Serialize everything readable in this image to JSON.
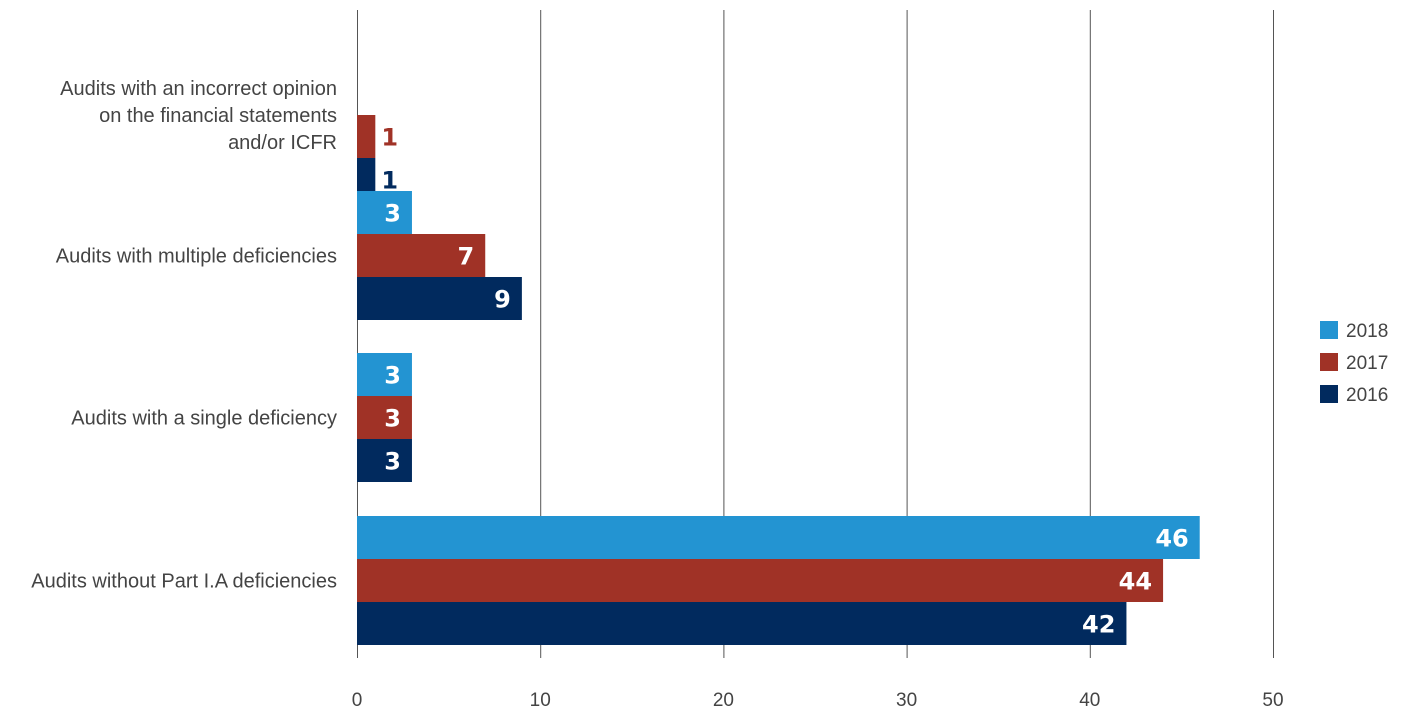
{
  "chart_data": {
    "type": "bar",
    "orientation": "horizontal",
    "categories": [
      [
        "Audits with an incorrect opinion",
        "on the financial statements",
        "and/or ICFR"
      ],
      [
        "Audits with multiple deficiencies"
      ],
      [
        "Audits with a single deficiency"
      ],
      [
        "Audits without Part I.A deficiencies"
      ]
    ],
    "series": [
      {
        "name": "2018",
        "color": "#2394d2",
        "values": [
          null,
          3,
          3,
          46
        ]
      },
      {
        "name": "2017",
        "color": "#a03226",
        "values": [
          1,
          7,
          3,
          44
        ]
      },
      {
        "name": "2016",
        "color": "#012a5e",
        "values": [
          1,
          9,
          3,
          42
        ]
      }
    ],
    "xlim": [
      0,
      50
    ],
    "xticks": [
      0,
      10,
      20,
      30,
      40,
      50
    ],
    "grid": "vertical",
    "legend": "right"
  }
}
